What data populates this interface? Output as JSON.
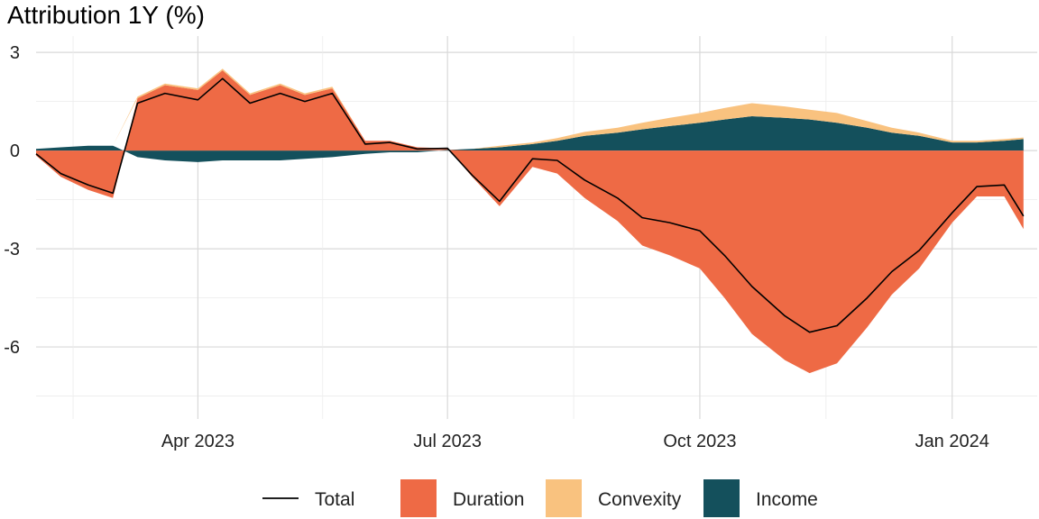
{
  "chart_data": {
    "type": "area",
    "title": "Attribution 1Y (%)",
    "xlabel": "",
    "ylabel": "",
    "x_range": [
      "2023-02-01",
      "2024-02-01"
    ],
    "ylim": [
      -8.2,
      3.5
    ],
    "y_ticks": [
      -6,
      -3,
      0,
      3
    ],
    "y_tick_labels": [
      "-6",
      "-3",
      "0",
      "3"
    ],
    "x_ticks": [
      "2023-04-01",
      "2023-07-01",
      "2023-10-01",
      "2024-01-01"
    ],
    "x_tick_labels": [
      "Apr 2023",
      "Jul 2023",
      "Oct 2023",
      "Jan 2024"
    ],
    "grid": true,
    "legend_position": "bottom",
    "legend": [
      {
        "label": "Total",
        "kind": "line",
        "color": "#000000"
      },
      {
        "label": "Duration",
        "kind": "fill",
        "color": "#EE6A45"
      },
      {
        "label": "Convexity",
        "kind": "fill",
        "color": "#F9C27F"
      },
      {
        "label": "Income",
        "kind": "fill",
        "color": "#14505C"
      }
    ],
    "x": [
      "2023-02-01",
      "2023-02-10",
      "2023-02-20",
      "2023-03-01",
      "2023-03-10",
      "2023-03-20",
      "2023-04-01",
      "2023-04-10",
      "2023-04-20",
      "2023-05-01",
      "2023-05-10",
      "2023-05-20",
      "2023-06-01",
      "2023-06-10",
      "2023-06-20",
      "2023-07-01",
      "2023-07-10",
      "2023-07-20",
      "2023-08-01",
      "2023-08-10",
      "2023-08-20",
      "2023-09-01",
      "2023-09-10",
      "2023-09-20",
      "2023-10-01",
      "2023-10-10",
      "2023-10-20",
      "2023-11-01",
      "2023-11-10",
      "2023-11-20",
      "2023-12-01",
      "2023-12-10",
      "2023-12-20",
      "2024-01-01",
      "2024-01-10",
      "2024-01-20",
      "2024-01-27"
    ],
    "series": [
      {
        "name": "Duration",
        "values": [
          -0.15,
          -0.8,
          -1.2,
          -1.45,
          1.6,
          2.0,
          1.85,
          2.45,
          1.7,
          2.0,
          1.7,
          1.9,
          0.3,
          0.3,
          0.1,
          0.05,
          -0.8,
          -1.7,
          -0.5,
          -0.7,
          -1.45,
          -2.15,
          -2.9,
          -3.2,
          -3.6,
          -4.5,
          -5.6,
          -6.4,
          -6.8,
          -6.5,
          -5.4,
          -4.4,
          -3.6,
          -2.2,
          -1.4,
          -1.4,
          -2.4
        ]
      },
      {
        "name": "Convexity",
        "values": [
          0,
          0,
          0,
          0,
          0.05,
          0.05,
          0.05,
          0.05,
          0.05,
          0.05,
          0.05,
          0.05,
          0,
          0,
          0,
          0,
          0,
          0.05,
          0.05,
          0.08,
          0.12,
          0.15,
          0.2,
          0.25,
          0.3,
          0.35,
          0.4,
          0.35,
          0.3,
          0.3,
          0.2,
          0.15,
          0.1,
          0.05,
          0.05,
          0.05,
          0.05
        ]
      },
      {
        "name": "Income",
        "values": [
          0.05,
          0.1,
          0.15,
          0.15,
          -0.2,
          -0.3,
          -0.35,
          -0.3,
          -0.3,
          -0.3,
          -0.25,
          -0.2,
          -0.1,
          -0.05,
          -0.05,
          0.02,
          0.05,
          0.1,
          0.2,
          0.3,
          0.45,
          0.55,
          0.65,
          0.75,
          0.85,
          0.95,
          1.05,
          1.0,
          0.95,
          0.85,
          0.7,
          0.55,
          0.45,
          0.25,
          0.25,
          0.3,
          0.35
        ]
      },
      {
        "name": "Total",
        "values": [
          -0.1,
          -0.7,
          -1.05,
          -1.3,
          1.45,
          1.75,
          1.55,
          2.2,
          1.45,
          1.75,
          1.5,
          1.75,
          0.2,
          0.25,
          0.05,
          0.07,
          -0.75,
          -1.55,
          -0.25,
          -0.3,
          -0.9,
          -1.45,
          -2.05,
          -2.2,
          -2.45,
          -3.2,
          -4.15,
          -5.05,
          -5.55,
          -5.35,
          -4.5,
          -3.7,
          -3.05,
          -1.9,
          -1.1,
          -1.05,
          -2.0
        ]
      }
    ]
  }
}
